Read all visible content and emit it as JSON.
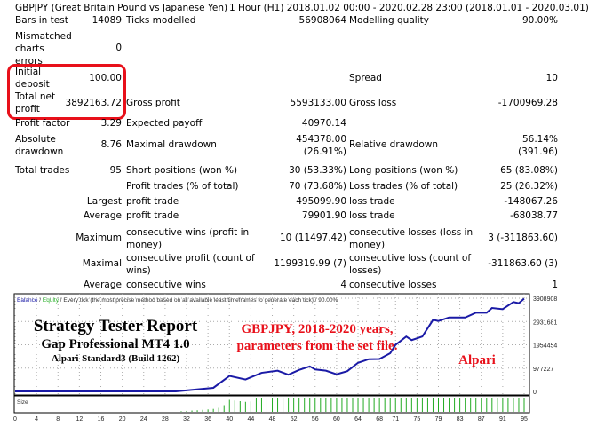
{
  "header": {
    "symbol": "GBPJPY (Great Britain Pound vs Japanese Yen)",
    "period": "1 Hour (H1) 2018.01.02 00:00 - 2020.02.28 23:00 (2018.01.01 - 2020.03.01)"
  },
  "stats": {
    "bars_in_test": {
      "label": "Bars in test",
      "value": "14089"
    },
    "ticks_modelled": {
      "label": "Ticks modelled",
      "value": "56908064"
    },
    "modelling_quality": {
      "label": "Modelling quality",
      "value": "90.00%"
    },
    "mismatched": {
      "label": "Mismatched charts errors",
      "value": "0"
    },
    "initial_deposit": {
      "label": "Initial deposit",
      "value": "100.00"
    },
    "spread": {
      "label": "Spread",
      "value": "10"
    },
    "total_net_profit": {
      "label": "Total net profit",
      "value": "3892163.72"
    },
    "gross_profit": {
      "label": "Gross profit",
      "value": "5593133.00"
    },
    "gross_loss": {
      "label": "Gross loss",
      "value": "-1700969.28"
    },
    "profit_factor": {
      "label": "Profit factor",
      "value": "3.29"
    },
    "expected_payoff": {
      "label": "Expected payoff",
      "value": "40970.14"
    },
    "absolute_drawdown": {
      "label": "Absolute drawdown",
      "value": "8.76"
    },
    "maximal_drawdown": {
      "label": "Maximal drawdown",
      "value": "454378.00 (26.91%)"
    },
    "relative_drawdown": {
      "label": "Relative drawdown",
      "value": "56.14% (391.96)"
    },
    "total_trades": {
      "label": "Total trades",
      "value": "95"
    },
    "short_positions": {
      "label": "Short positions (won %)",
      "value": "30 (53.33%)"
    },
    "long_positions": {
      "label": "Long positions (won %)",
      "value": "65 (83.08%)"
    },
    "profit_trades": {
      "label": "Profit trades (% of total)",
      "value": "70 (73.68%)"
    },
    "loss_trades": {
      "label": "Loss trades (% of total)",
      "value": "25 (26.32%)"
    },
    "largest": {
      "label": "Largest",
      "profit_label": "profit trade",
      "profit": "495099.90",
      "loss_label": "loss trade",
      "loss": "-148067.26"
    },
    "average": {
      "label": "Average",
      "profit_label": "profit trade",
      "profit": "79901.90",
      "loss_label": "loss trade",
      "loss": "-68038.77"
    },
    "maximum": {
      "label": "Maximum",
      "wins_label": "consecutive wins (profit in money)",
      "wins": "10 (11497.42)",
      "losses_label": "consecutive losses (loss in money)",
      "losses": "3 (-311863.60)"
    },
    "maximal": {
      "label": "Maximal",
      "profit_label": "consecutive profit (count of wins)",
      "profit": "1199319.99 (7)",
      "loss_label": "consecutive loss (count of losses)",
      "loss": "-311863.60 (3)"
    },
    "average_consec": {
      "label": "Average",
      "wins_label": "consecutive wins",
      "wins": "4",
      "losses_label": "consecutive losses",
      "losses": "1"
    }
  },
  "chart_data": {
    "type": "line",
    "legend": {
      "balance": "Balance",
      "sep1": " / ",
      "equity": "Equity",
      "rest": " / Every tick (the most precise method based on all available least timeframes to generate each tick) / 90.00%"
    },
    "overlay": {
      "title": "Strategy Tester Report",
      "subtitle": "Gap Professional MT4 1.0",
      "server": "Alpari-Standard3 (Build 1262)",
      "note1": "GBPJPY,  2018-2020 years,",
      "note2": "parameters from the set file.",
      "broker": "Alpari"
    },
    "size_label": "Size",
    "xlim": [
      0,
      95
    ],
    "ylim": [
      0,
      3908908
    ],
    "yticks": [
      "0",
      "977227",
      "1954454",
      "2931681",
      "3908908"
    ],
    "xticks": [
      "0",
      "4",
      "8",
      "12",
      "16",
      "20",
      "24",
      "28",
      "32",
      "36",
      "40",
      "44",
      "48",
      "52",
      "56",
      "60",
      "64",
      "68",
      "71",
      "75",
      "79",
      "83",
      "87",
      "91",
      "95"
    ],
    "grid": true,
    "colors": {
      "balance": "#1a1aa6",
      "equity": "#2ab02a",
      "size": "#22aa22",
      "notes": "#e8101a"
    },
    "balance": [
      [
        0,
        100
      ],
      [
        30,
        100
      ],
      [
        37,
        150000
      ],
      [
        40,
        650000
      ],
      [
        43,
        500000
      ],
      [
        46,
        780000
      ],
      [
        49,
        870000
      ],
      [
        51,
        700000
      ],
      [
        53,
        900000
      ],
      [
        55,
        1050000
      ],
      [
        56,
        920000
      ],
      [
        58,
        870000
      ],
      [
        60,
        720000
      ],
      [
        62,
        850000
      ],
      [
        64,
        1200000
      ],
      [
        66,
        1350000
      ],
      [
        68,
        1360000
      ],
      [
        70,
        1600000
      ],
      [
        71,
        1950000
      ],
      [
        73,
        2300000
      ],
      [
        74,
        2150000
      ],
      [
        76,
        2300000
      ],
      [
        78,
        3000000
      ],
      [
        79,
        2950000
      ],
      [
        81,
        3100000
      ],
      [
        84,
        3100000
      ],
      [
        86,
        3300000
      ],
      [
        88,
        3300000
      ],
      [
        89,
        3500000
      ],
      [
        91,
        3450000
      ],
      [
        93,
        3750000
      ],
      [
        94,
        3700000
      ],
      [
        95,
        3892163
      ]
    ],
    "size": [
      [
        31,
        0.05
      ],
      [
        32,
        0.07
      ],
      [
        33,
        0.1
      ],
      [
        34,
        0.12
      ],
      [
        35,
        0.15
      ],
      [
        36,
        0.18
      ],
      [
        37,
        0.22
      ],
      [
        38,
        0.3
      ],
      [
        39,
        0.5
      ],
      [
        40,
        0.9
      ],
      [
        41,
        0.85
      ],
      [
        42,
        0.8
      ],
      [
        43,
        0.75
      ],
      [
        44,
        0.78
      ],
      [
        45,
        1
      ],
      [
        46,
        1
      ],
      [
        47,
        1
      ],
      [
        48,
        1
      ],
      [
        49,
        1
      ],
      [
        50,
        1
      ],
      [
        51,
        1
      ],
      [
        52,
        1
      ],
      [
        53,
        1
      ],
      [
        54,
        1
      ],
      [
        55,
        1
      ],
      [
        56,
        1
      ],
      [
        57,
        1
      ],
      [
        58,
        1
      ],
      [
        59,
        1
      ],
      [
        60,
        1
      ],
      [
        61,
        1
      ],
      [
        62,
        1
      ],
      [
        63,
        1
      ],
      [
        64,
        1
      ],
      [
        65,
        1
      ],
      [
        66,
        1
      ],
      [
        67,
        1
      ],
      [
        68,
        1
      ],
      [
        69,
        1
      ],
      [
        70,
        1
      ],
      [
        71,
        1
      ],
      [
        72,
        1
      ],
      [
        73,
        1
      ],
      [
        74,
        1
      ],
      [
        75,
        1
      ],
      [
        76,
        1
      ],
      [
        77,
        1
      ],
      [
        78,
        1
      ],
      [
        79,
        1
      ],
      [
        80,
        1
      ],
      [
        81,
        1
      ],
      [
        82,
        1
      ],
      [
        83,
        1
      ],
      [
        84,
        1
      ],
      [
        85,
        1
      ],
      [
        86,
        1
      ],
      [
        87,
        1
      ],
      [
        88,
        1
      ],
      [
        89,
        1
      ],
      [
        90,
        1
      ],
      [
        91,
        1
      ],
      [
        92,
        1
      ],
      [
        93,
        1
      ],
      [
        94,
        1
      ],
      [
        95,
        1
      ]
    ]
  }
}
